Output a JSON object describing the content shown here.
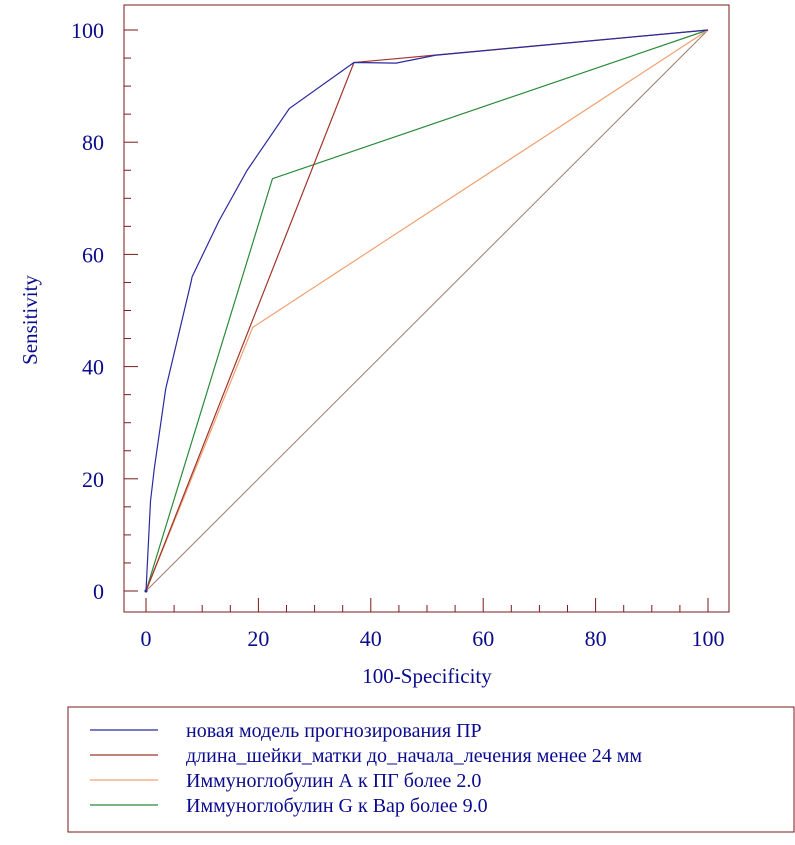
{
  "chart_data": {
    "type": "line",
    "title": "",
    "xlabel": "100-Specificity",
    "ylabel": "Sensitivity",
    "xlim": [
      0,
      100
    ],
    "ylim": [
      0,
      100
    ],
    "xticks": [
      "0",
      "20",
      "40",
      "60",
      "80",
      "100"
    ],
    "yticks": [
      "0",
      "20",
      "40",
      "60",
      "80",
      "100"
    ],
    "grid": false,
    "legend_position": "bottom",
    "frame_color": "#7a1a1a",
    "axis_color": "#7a1a1a",
    "text_color": "#0a0a8c",
    "series": [
      {
        "name": "новая модель прогнозирования ПР",
        "color": "#2a2aa0",
        "points": [
          [
            0,
            0
          ],
          [
            0.8,
            16
          ],
          [
            1.5,
            22
          ],
          [
            3.5,
            36
          ],
          [
            8,
            55
          ],
          [
            8.2,
            56
          ],
          [
            13,
            66
          ],
          [
            18,
            75
          ],
          [
            25.5,
            86
          ],
          [
            37,
            94.2
          ],
          [
            44.5,
            94.1
          ],
          [
            51.5,
            95.5
          ],
          [
            100,
            100
          ]
        ]
      },
      {
        "name": "длина_шейки_матки до_начала_лечения менее 24 мм",
        "color": "#a0342c",
        "points": [
          [
            0,
            0
          ],
          [
            37,
            94.2
          ],
          [
            100,
            100
          ]
        ]
      },
      {
        "name": "Иммуноглобулин А к ПГ более 2.0",
        "color": "#f0a070",
        "points": [
          [
            0,
            0
          ],
          [
            19,
            47
          ],
          [
            100,
            100
          ]
        ]
      },
      {
        "name": "Иммуноглобулин G к Вар более 9.0",
        "color": "#2a8a3a",
        "points": [
          [
            0,
            0
          ],
          [
            22.5,
            73.5
          ],
          [
            100,
            100
          ]
        ]
      }
    ],
    "reference_line": {
      "color": "#a07a6a",
      "points": [
        [
          0,
          0
        ],
        [
          100,
          100
        ]
      ]
    }
  }
}
